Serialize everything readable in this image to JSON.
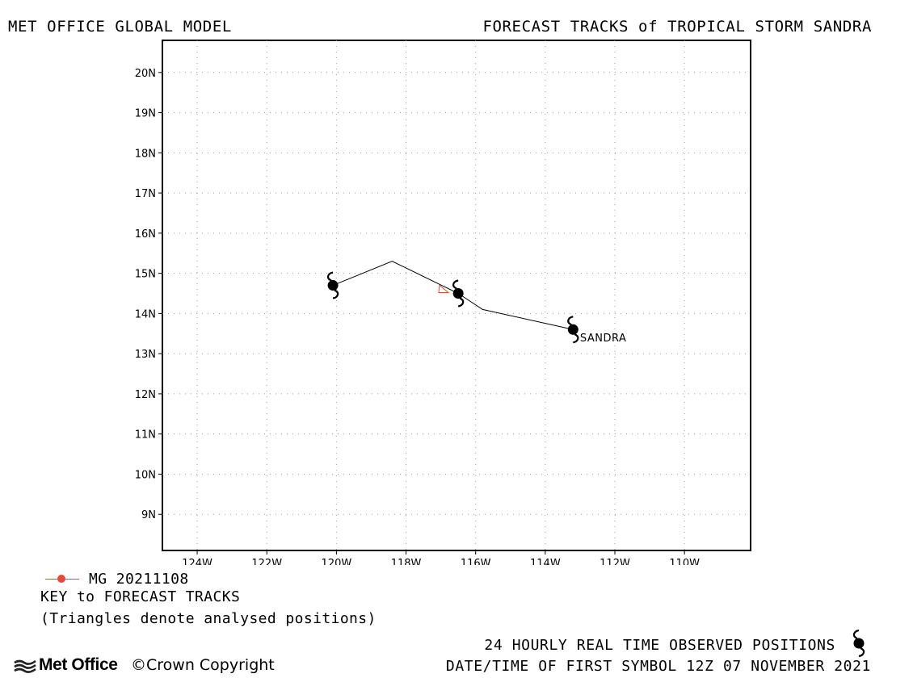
{
  "header": {
    "left_title": "MET OFFICE GLOBAL MODEL",
    "right_title": "FORECAST TRACKS of TROPICAL STORM SANDRA"
  },
  "map": {
    "lon_range": [
      -125,
      -108.1
    ],
    "lat_range": [
      8.1,
      20.8
    ],
    "grid": true,
    "lon_ticks": [
      {
        "value": -124,
        "label": "124W"
      },
      {
        "value": -122,
        "label": "122W"
      },
      {
        "value": -120,
        "label": "120W"
      },
      {
        "value": -118,
        "label": "118W"
      },
      {
        "value": -116,
        "label": "116W"
      },
      {
        "value": -114,
        "label": "114W"
      },
      {
        "value": -112,
        "label": "112W"
      },
      {
        "value": -110,
        "label": "110W"
      }
    ],
    "lat_ticks": [
      {
        "value": 20,
        "label": "20N"
      },
      {
        "value": 19,
        "label": "19N"
      },
      {
        "value": 18,
        "label": "18N"
      },
      {
        "value": 17,
        "label": "17N"
      },
      {
        "value": 16,
        "label": "16N"
      },
      {
        "value": 15,
        "label": "15N"
      },
      {
        "value": 14,
        "label": "14N"
      },
      {
        "value": 13,
        "label": "13N"
      },
      {
        "value": 12,
        "label": "12N"
      },
      {
        "value": 11,
        "label": "11N"
      },
      {
        "value": 10,
        "label": "10N"
      },
      {
        "value": 9,
        "label": "9N"
      }
    ],
    "observed_track": [
      {
        "lon": -120.1,
        "lat": 14.7
      },
      {
        "lon": -118.4,
        "lat": 15.3
      },
      {
        "lon": -116.5,
        "lat": 14.5
      },
      {
        "lon": -115.8,
        "lat": 14.1
      },
      {
        "lon": -113.2,
        "lat": 13.6
      }
    ],
    "observed_symbols": [
      {
        "lon": -120.1,
        "lat": 14.7
      },
      {
        "lon": -116.5,
        "lat": 14.5
      },
      {
        "lon": -113.2,
        "lat": 13.6
      }
    ],
    "analysed_triangle": {
      "lon": -116.9,
      "lat": 14.6
    },
    "storm_label": {
      "text": "SANDRA",
      "lon": -113.0,
      "lat": 13.3
    },
    "track_color": "#000000",
    "forecast_color": "#e8483a"
  },
  "key": {
    "entry_label": "MG 20211108",
    "title": "KEY to FORECAST TRACKS",
    "note": "(Triangles denote analysed positions)"
  },
  "footer": {
    "observed_label": "24 HOURLY REAL TIME OBSERVED POSITIONS",
    "first_symbol": "DATE/TIME OF FIRST SYMBOL 12Z 07 NOVEMBER 2021",
    "logo_text": "Met Office",
    "copyright": "©Crown Copyright"
  }
}
